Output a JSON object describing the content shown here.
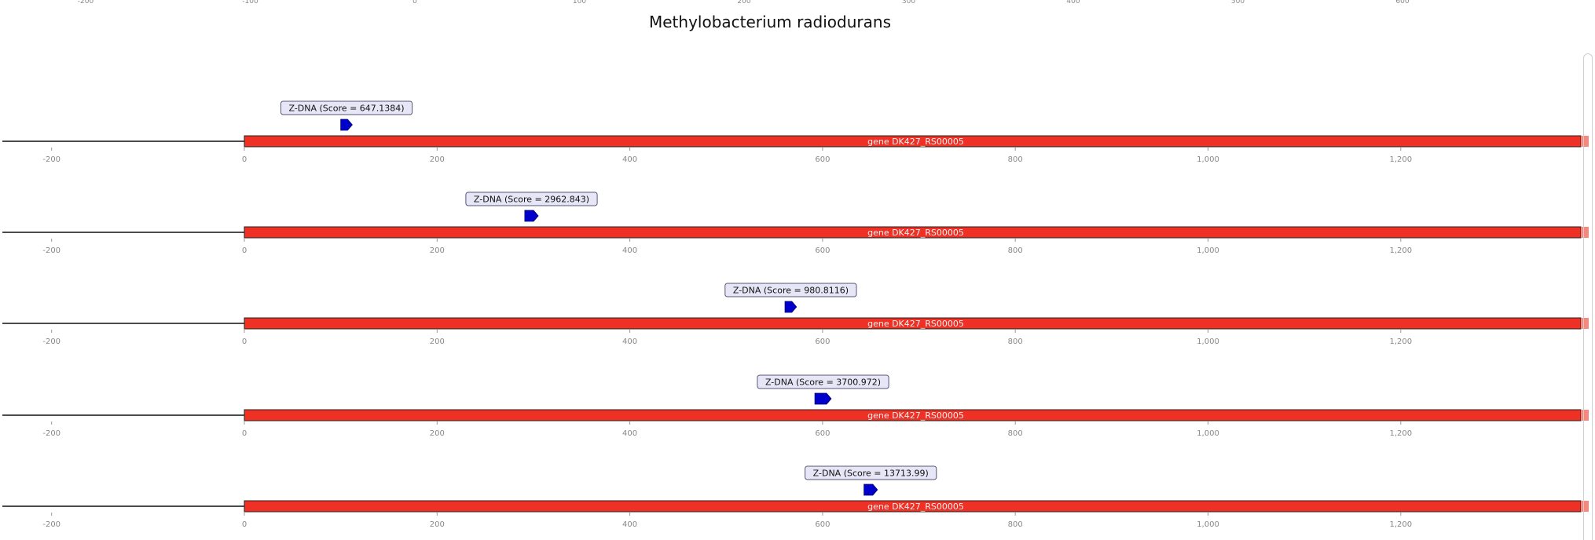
{
  "title": "Methylobacterium radiodurans",
  "top_axis": {
    "ticks": [
      "-200",
      "-100",
      "0",
      "100",
      "200",
      "300",
      "400",
      "500",
      "600"
    ]
  },
  "chart_data": {
    "type": "genome-feature-track",
    "title": "Methylobacterium radiodurans",
    "xlim": [
      -250,
      1395
    ],
    "x_ticks": [
      -200,
      0,
      200,
      400,
      600,
      800,
      1000,
      1200
    ],
    "x_tick_labels": [
      "-200",
      "0",
      "200",
      "400",
      "600",
      "800",
      "1,000",
      "1,200"
    ],
    "tracks": [
      {
        "gene": {
          "label": "gene DK427_RS00005",
          "start": 0,
          "end": 1395,
          "color": "#ee3124"
        },
        "feature": {
          "label": "Z-DNA (Score = 647.1384)",
          "start": 100,
          "end": 112,
          "strand": "+",
          "color": "#0000cc"
        }
      },
      {
        "gene": {
          "label": "gene DK427_RS00005",
          "start": 0,
          "end": 1395,
          "color": "#ee3124"
        },
        "feature": {
          "label": "Z-DNA (Score = 2962.843)",
          "start": 291,
          "end": 305,
          "strand": "+",
          "color": "#0000cc"
        }
      },
      {
        "gene": {
          "label": "gene DK427_RS00005",
          "start": 0,
          "end": 1395,
          "color": "#ee3124"
        },
        "feature": {
          "label": "Z-DNA (Score = 980.8116)",
          "start": 561,
          "end": 573,
          "strand": "+",
          "color": "#0000cc"
        }
      },
      {
        "gene": {
          "label": "gene DK427_RS00005",
          "start": 0,
          "end": 1395,
          "color": "#ee3124"
        },
        "feature": {
          "label": "Z-DNA (Score = 3700.972)",
          "start": 592,
          "end": 609,
          "strand": "+",
          "color": "#0000cc"
        }
      },
      {
        "gene": {
          "label": "gene DK427_RS00005",
          "start": 0,
          "end": 1395,
          "color": "#ee3124"
        },
        "feature": {
          "label": "Z-DNA (Score = 13713.99)",
          "start": 643,
          "end": 657,
          "strand": "+",
          "color": "#0000cc"
        }
      }
    ]
  }
}
